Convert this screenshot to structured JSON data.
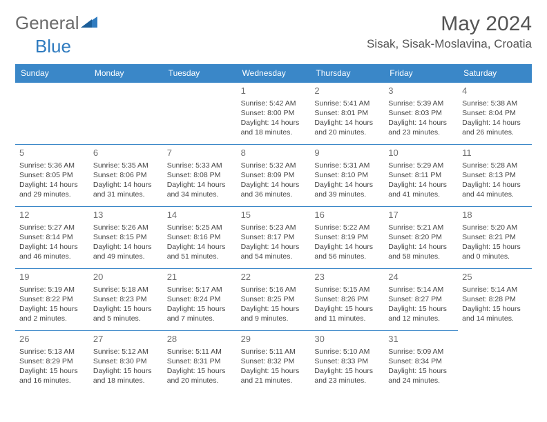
{
  "brand": {
    "part1": "General",
    "part2": "Blue"
  },
  "title": "May 2024",
  "location": "Sisak, Sisak-Moslavina, Croatia",
  "colors": {
    "header_bg": "#3a87c8",
    "header_fg": "#ffffff",
    "brand_gray": "#6b6b6b",
    "brand_blue": "#2f7bbf",
    "text": "#444444",
    "daynum": "#707070"
  },
  "daynames": [
    "Sunday",
    "Monday",
    "Tuesday",
    "Wednesday",
    "Thursday",
    "Friday",
    "Saturday"
  ],
  "leading_blanks": 3,
  "days": [
    {
      "n": "1",
      "sunrise": "5:42 AM",
      "sunset": "8:00 PM",
      "daylight": "14 hours and 18 minutes."
    },
    {
      "n": "2",
      "sunrise": "5:41 AM",
      "sunset": "8:01 PM",
      "daylight": "14 hours and 20 minutes."
    },
    {
      "n": "3",
      "sunrise": "5:39 AM",
      "sunset": "8:03 PM",
      "daylight": "14 hours and 23 minutes."
    },
    {
      "n": "4",
      "sunrise": "5:38 AM",
      "sunset": "8:04 PM",
      "daylight": "14 hours and 26 minutes."
    },
    {
      "n": "5",
      "sunrise": "5:36 AM",
      "sunset": "8:05 PM",
      "daylight": "14 hours and 29 minutes."
    },
    {
      "n": "6",
      "sunrise": "5:35 AM",
      "sunset": "8:06 PM",
      "daylight": "14 hours and 31 minutes."
    },
    {
      "n": "7",
      "sunrise": "5:33 AM",
      "sunset": "8:08 PM",
      "daylight": "14 hours and 34 minutes."
    },
    {
      "n": "8",
      "sunrise": "5:32 AM",
      "sunset": "8:09 PM",
      "daylight": "14 hours and 36 minutes."
    },
    {
      "n": "9",
      "sunrise": "5:31 AM",
      "sunset": "8:10 PM",
      "daylight": "14 hours and 39 minutes."
    },
    {
      "n": "10",
      "sunrise": "5:29 AM",
      "sunset": "8:11 PM",
      "daylight": "14 hours and 41 minutes."
    },
    {
      "n": "11",
      "sunrise": "5:28 AM",
      "sunset": "8:13 PM",
      "daylight": "14 hours and 44 minutes."
    },
    {
      "n": "12",
      "sunrise": "5:27 AM",
      "sunset": "8:14 PM",
      "daylight": "14 hours and 46 minutes."
    },
    {
      "n": "13",
      "sunrise": "5:26 AM",
      "sunset": "8:15 PM",
      "daylight": "14 hours and 49 minutes."
    },
    {
      "n": "14",
      "sunrise": "5:25 AM",
      "sunset": "8:16 PM",
      "daylight": "14 hours and 51 minutes."
    },
    {
      "n": "15",
      "sunrise": "5:23 AM",
      "sunset": "8:17 PM",
      "daylight": "14 hours and 54 minutes."
    },
    {
      "n": "16",
      "sunrise": "5:22 AM",
      "sunset": "8:19 PM",
      "daylight": "14 hours and 56 minutes."
    },
    {
      "n": "17",
      "sunrise": "5:21 AM",
      "sunset": "8:20 PM",
      "daylight": "14 hours and 58 minutes."
    },
    {
      "n": "18",
      "sunrise": "5:20 AM",
      "sunset": "8:21 PM",
      "daylight": "15 hours and 0 minutes."
    },
    {
      "n": "19",
      "sunrise": "5:19 AM",
      "sunset": "8:22 PM",
      "daylight": "15 hours and 2 minutes."
    },
    {
      "n": "20",
      "sunrise": "5:18 AM",
      "sunset": "8:23 PM",
      "daylight": "15 hours and 5 minutes."
    },
    {
      "n": "21",
      "sunrise": "5:17 AM",
      "sunset": "8:24 PM",
      "daylight": "15 hours and 7 minutes."
    },
    {
      "n": "22",
      "sunrise": "5:16 AM",
      "sunset": "8:25 PM",
      "daylight": "15 hours and 9 minutes."
    },
    {
      "n": "23",
      "sunrise": "5:15 AM",
      "sunset": "8:26 PM",
      "daylight": "15 hours and 11 minutes."
    },
    {
      "n": "24",
      "sunrise": "5:14 AM",
      "sunset": "8:27 PM",
      "daylight": "15 hours and 12 minutes."
    },
    {
      "n": "25",
      "sunrise": "5:14 AM",
      "sunset": "8:28 PM",
      "daylight": "15 hours and 14 minutes."
    },
    {
      "n": "26",
      "sunrise": "5:13 AM",
      "sunset": "8:29 PM",
      "daylight": "15 hours and 16 minutes."
    },
    {
      "n": "27",
      "sunrise": "5:12 AM",
      "sunset": "8:30 PM",
      "daylight": "15 hours and 18 minutes."
    },
    {
      "n": "28",
      "sunrise": "5:11 AM",
      "sunset": "8:31 PM",
      "daylight": "15 hours and 20 minutes."
    },
    {
      "n": "29",
      "sunrise": "5:11 AM",
      "sunset": "8:32 PM",
      "daylight": "15 hours and 21 minutes."
    },
    {
      "n": "30",
      "sunrise": "5:10 AM",
      "sunset": "8:33 PM",
      "daylight": "15 hours and 23 minutes."
    },
    {
      "n": "31",
      "sunrise": "5:09 AM",
      "sunset": "8:34 PM",
      "daylight": "15 hours and 24 minutes."
    }
  ],
  "labels": {
    "sunrise": "Sunrise: ",
    "sunset": "Sunset: ",
    "daylight": "Daylight: "
  }
}
